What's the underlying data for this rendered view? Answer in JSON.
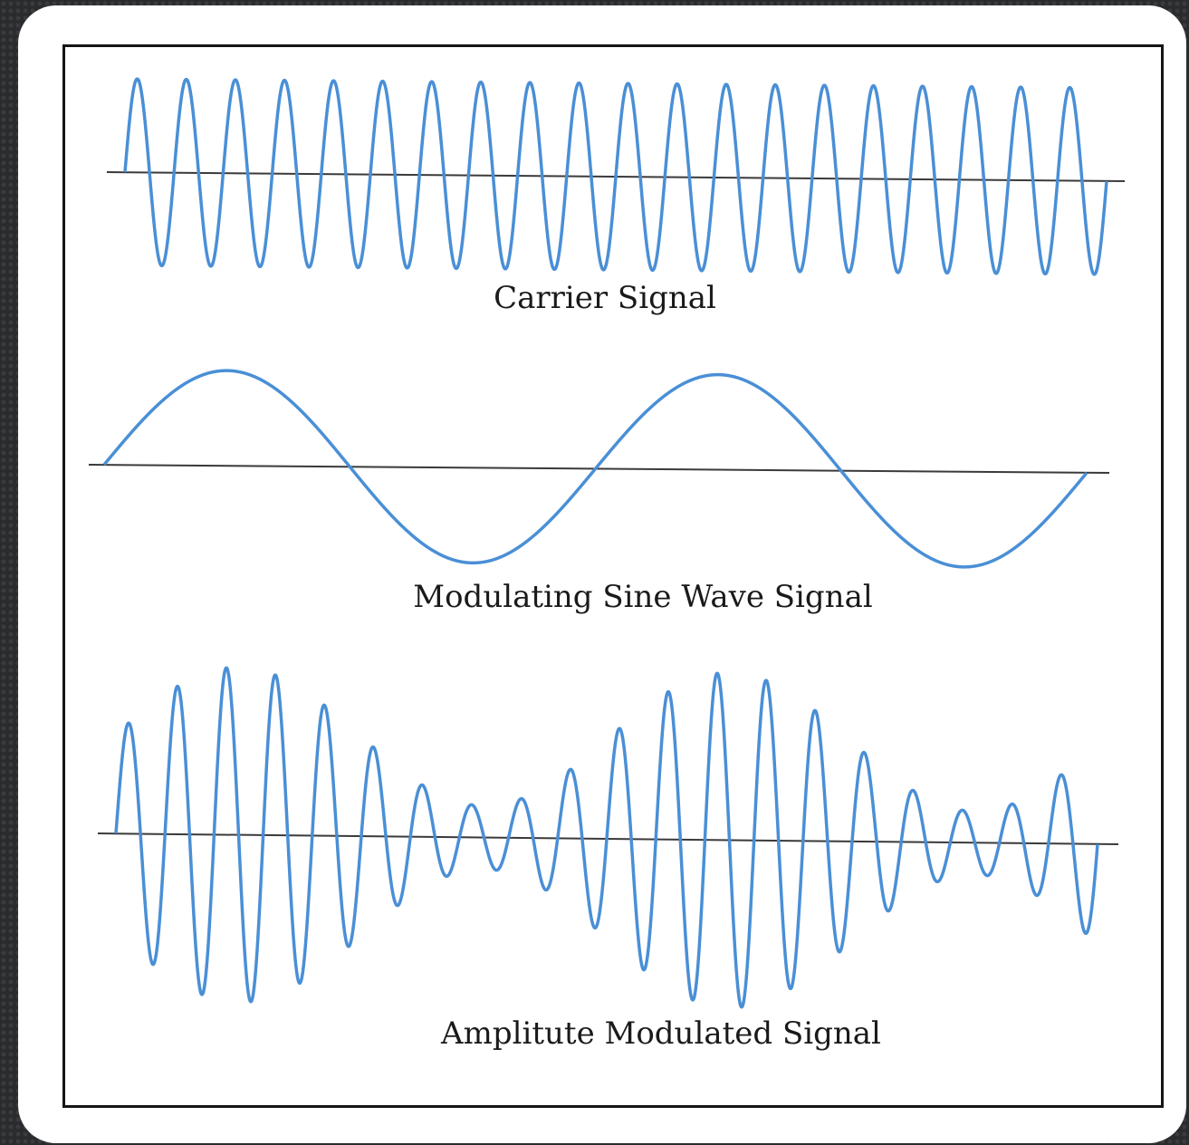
{
  "diagram": {
    "panels": [
      {
        "id": "carrier",
        "caption": "Carrier Signal",
        "cycles": 20,
        "stroke": "#4a8fd6"
      },
      {
        "id": "modulating",
        "caption": "Modulating Sine Wave Signal",
        "cycles": 2,
        "stroke": "#4a8fd6"
      },
      {
        "id": "modulated",
        "caption": "Amplitute Modulated Signal",
        "cycles": 20,
        "envelope_cycles": 2,
        "stroke": "#4a8fd6"
      }
    ],
    "colors": {
      "wave": "#4a8fd6",
      "axis": "#3a3a3a",
      "frame": "#151515",
      "card": "#ffffff"
    }
  }
}
